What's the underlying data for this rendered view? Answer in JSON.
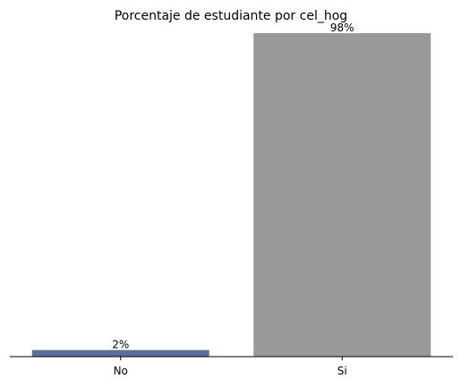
{
  "chart_data": {
    "type": "bar",
    "title": "Porcentaje de estudiante por cel_hog",
    "categories": [
      "No",
      "Si"
    ],
    "values": [
      2,
      98
    ],
    "data_labels": [
      "2%",
      "98%"
    ],
    "colors": [
      "#5a6e99",
      "#999999"
    ],
    "ylim": [
      0,
      98
    ],
    "xlabel": "",
    "ylabel": "",
    "grid": false
  }
}
